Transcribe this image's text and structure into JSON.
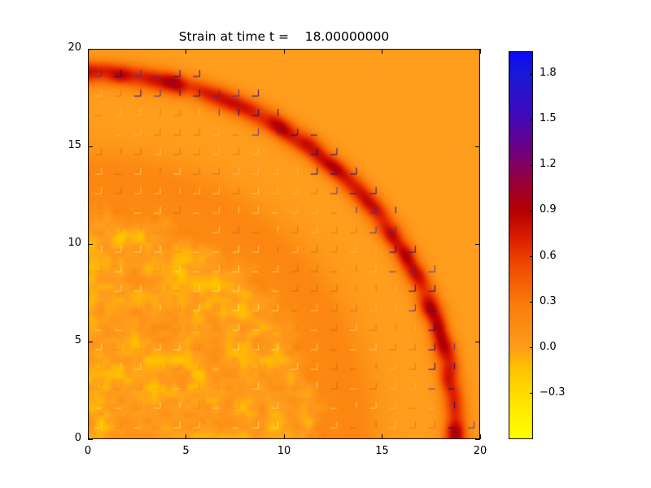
{
  "chart_data": {
    "type": "heatmap",
    "title": "Strain at time t =    18.00000000",
    "xlabel": "",
    "ylabel": "",
    "xlim": [
      0,
      20
    ],
    "ylim": [
      0,
      20
    ],
    "xticks": [
      0,
      5,
      10,
      15,
      20
    ],
    "xtick_labels": [
      "0",
      "5",
      "10",
      "15",
      "20"
    ],
    "yticks": [
      0,
      5,
      10,
      15,
      20
    ],
    "ytick_labels": [
      "0",
      "5",
      "10",
      "15",
      "20"
    ],
    "grid": false,
    "colorbar": {
      "vmin": -0.6,
      "vmax": 1.95,
      "ticks": [
        1.8,
        1.5,
        1.2,
        0.9,
        0.6,
        0.3,
        0.0,
        -0.3
      ],
      "tick_labels": [
        "1.8",
        "1.5",
        "1.2",
        "0.9",
        "0.6",
        "0.3",
        "0.0",
        "−0.3"
      ]
    },
    "colormap_stops": [
      [
        -0.6,
        "#ffff00"
      ],
      [
        -0.35,
        "#ffe400"
      ],
      [
        -0.12,
        "#ffc000"
      ],
      [
        0.0,
        "#ff9d1c"
      ],
      [
        0.3,
        "#fa7a0a"
      ],
      [
        0.55,
        "#f04800"
      ],
      [
        0.72,
        "#dc1e00"
      ],
      [
        0.9,
        "#b40000"
      ],
      [
        1.1,
        "#96003c"
      ],
      [
        1.3,
        "#6e0082"
      ],
      [
        1.55,
        "#3c0abe"
      ],
      [
        1.8,
        "#1919d7"
      ],
      [
        1.95,
        "#0a0afa"
      ]
    ],
    "field": {
      "background": 0.0,
      "rings": [
        {
          "radius": 18.75,
          "sigma": 0.42,
          "amplitude": 0.78,
          "modulated": true
        },
        {
          "radius": 13.5,
          "sigma": 1.0,
          "amplitude": 0.2,
          "modulated": false
        },
        {
          "radius": 12.0,
          "sigma": 0.5,
          "amplitude": 0.08,
          "modulated": false
        }
      ],
      "noise_radius": 12.6,
      "noise_amplitude": 0.34,
      "mesh_spacing": 1.0,
      "mesh_zones": [
        {
          "rmax": 12.4,
          "colors": [
            "rgba(255,238,120,0.75)",
            "rgba(235,130,30,0.55)"
          ]
        },
        {
          "rmax": 15.4,
          "colors": [
            "rgba(255,230,150,0.60)",
            "rgba(170,80,30,0.45)"
          ]
        },
        {
          "rmax": 17.7,
          "colors": [
            "rgba(255,220,150,0.40)",
            "rgba(190,80,20,0.40)"
          ]
        },
        {
          "rmax": 19.6,
          "colors": [
            "rgba(10,10,140,0.92)",
            "rgba(45,45,185,0.85)"
          ]
        }
      ]
    }
  }
}
